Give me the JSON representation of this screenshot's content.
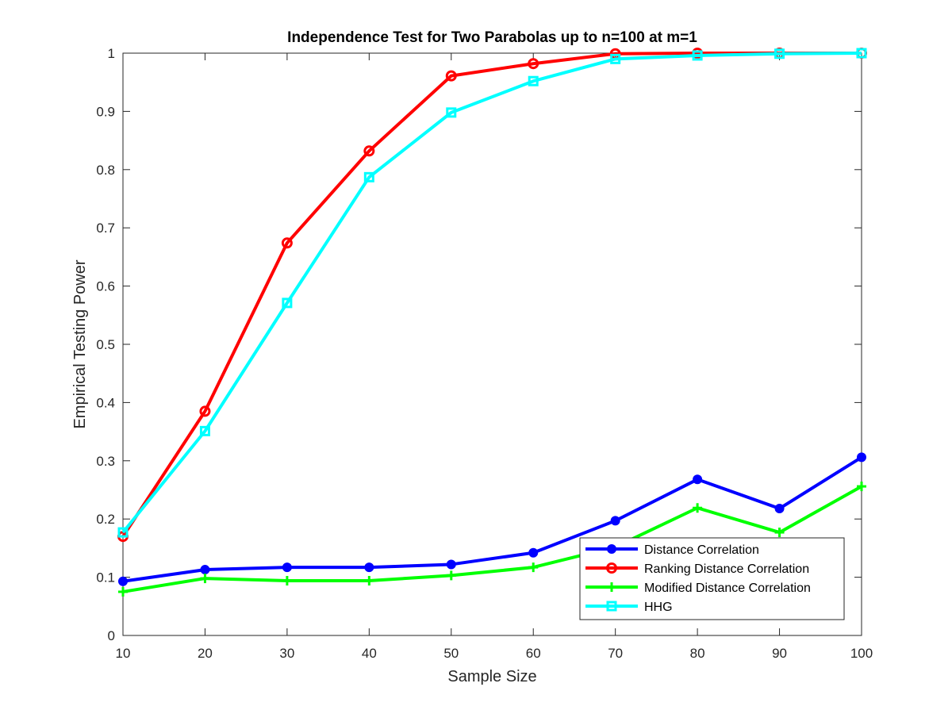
{
  "chart_data": {
    "type": "line",
    "title": "Independence Test for Two Parabolas up to n=100 at m=1",
    "xlabel": "Sample Size",
    "ylabel": "Empirical Testing Power",
    "x": [
      10,
      20,
      30,
      40,
      50,
      60,
      70,
      80,
      90,
      100
    ],
    "xlim": [
      10,
      100
    ],
    "ylim": [
      0,
      1
    ],
    "xticks": [
      10,
      20,
      30,
      40,
      50,
      60,
      70,
      80,
      90,
      100
    ],
    "yticks": [
      0,
      0.1,
      0.2,
      0.3,
      0.4,
      0.5,
      0.6,
      0.7,
      0.8,
      0.9,
      1
    ],
    "ytick_labels": [
      "0",
      "0.1",
      "0.2",
      "0.3",
      "0.4",
      "0.5",
      "0.6",
      "0.7",
      "0.8",
      "0.9",
      "1"
    ],
    "grid": false,
    "legend_position": "bottom-right",
    "series": [
      {
        "name": "Distance Correlation",
        "color": "#0000ff",
        "marker": "filled-circle",
        "values": [
          0.093,
          0.113,
          0.117,
          0.117,
          0.122,
          0.142,
          0.197,
          0.268,
          0.218,
          0.306
        ]
      },
      {
        "name": "Ranking Distance Correlation",
        "color": "#ff0000",
        "marker": "open-circle",
        "values": [
          0.17,
          0.385,
          0.674,
          0.832,
          0.961,
          0.982,
          0.999,
          1.0,
          1.0,
          1.0
        ]
      },
      {
        "name": "Modified Distance Correlation",
        "color": "#00ff00",
        "marker": "plus",
        "values": [
          0.075,
          0.098,
          0.094,
          0.094,
          0.103,
          0.117,
          0.152,
          0.219,
          0.177,
          0.256
        ]
      },
      {
        "name": "HHG",
        "color": "#00ffff",
        "marker": "open-square",
        "values": [
          0.177,
          0.351,
          0.571,
          0.787,
          0.898,
          0.952,
          0.99,
          0.996,
          0.999,
          1.0
        ]
      }
    ]
  }
}
